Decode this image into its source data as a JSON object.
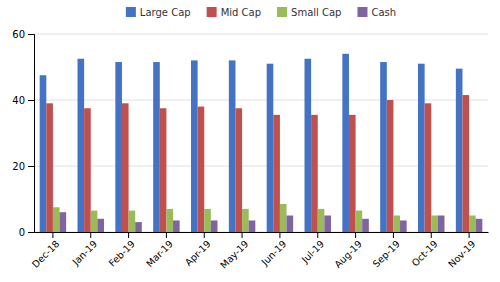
{
  "chart_data": {
    "type": "bar",
    "categories": [
      "Dec-18",
      "Jan-19",
      "Feb-19",
      "Mar-19",
      "Apr-19",
      "May-19",
      "Jun-19",
      "Jul-19",
      "Aug-19",
      "Sep-19",
      "Oct-19",
      "Nov-19"
    ],
    "series": [
      {
        "name": "Large Cap",
        "color": "#4472C4",
        "values": [
          47.5,
          52.5,
          51.5,
          51.5,
          52.0,
          52.0,
          51.0,
          52.5,
          54.0,
          51.5,
          51.0,
          49.5
        ]
      },
      {
        "name": "Mid Cap",
        "color": "#C0504D",
        "values": [
          39.0,
          37.5,
          39.0,
          37.5,
          38.0,
          37.5,
          35.5,
          35.5,
          35.5,
          40.0,
          39.0,
          41.5
        ]
      },
      {
        "name": "Small Cap",
        "color": "#9BBB59",
        "values": [
          7.5,
          6.5,
          6.5,
          7.0,
          7.0,
          7.0,
          8.5,
          7.0,
          6.5,
          5.0,
          5.0,
          5.0
        ]
      },
      {
        "name": "Cash",
        "color": "#8064A2",
        "values": [
          6.0,
          4.0,
          3.0,
          3.5,
          3.5,
          3.5,
          5.0,
          5.0,
          4.0,
          3.5,
          5.0,
          4.0
        ]
      }
    ],
    "ylim": [
      0,
      60
    ],
    "yticks": [
      0,
      20,
      40,
      60
    ],
    "grid": true,
    "legend": "top"
  }
}
